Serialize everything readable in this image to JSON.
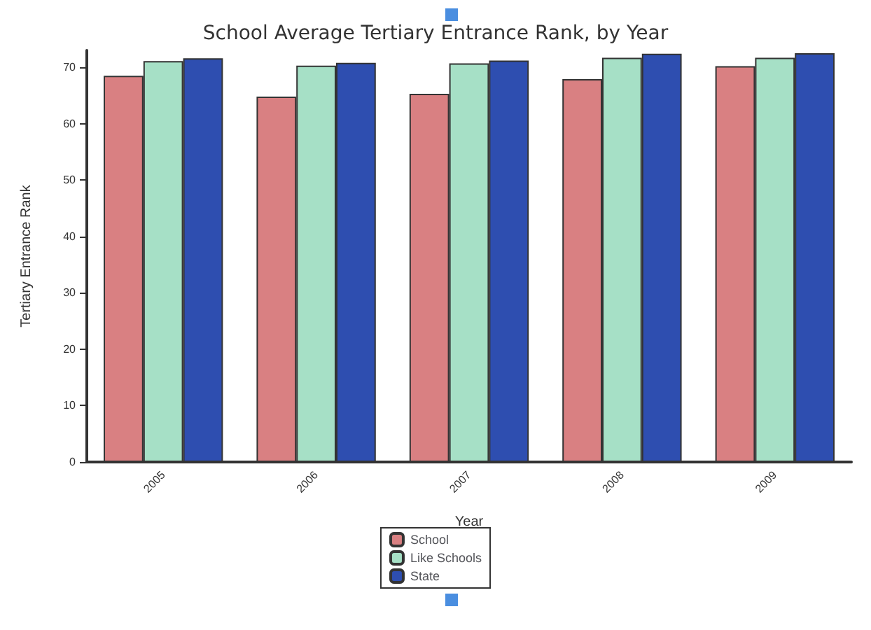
{
  "chart_data": {
    "type": "bar",
    "title": "School Average Tertiary Entrance Rank, by Year",
    "xlabel": "Year",
    "ylabel": "Tertiary Entrance Rank",
    "categories": [
      "2005",
      "2006",
      "2007",
      "2008",
      "2009"
    ],
    "series": [
      {
        "name": "School",
        "color": "#d98082",
        "values": [
          68.5,
          64.8,
          65.3,
          67.9,
          70.2
        ]
      },
      {
        "name": "Like Schools",
        "color": "#a6e0c6",
        "values": [
          71.1,
          70.3,
          70.7,
          71.7,
          71.7
        ]
      },
      {
        "name": "State",
        "color": "#2e4eb0",
        "values": [
          71.6,
          70.8,
          71.2,
          72.4,
          72.5
        ]
      }
    ],
    "ylim": [
      0,
      73
    ],
    "yticks": [
      0,
      10,
      20,
      30,
      40,
      50,
      60,
      70
    ],
    "grid": false,
    "legend": "bottom"
  }
}
